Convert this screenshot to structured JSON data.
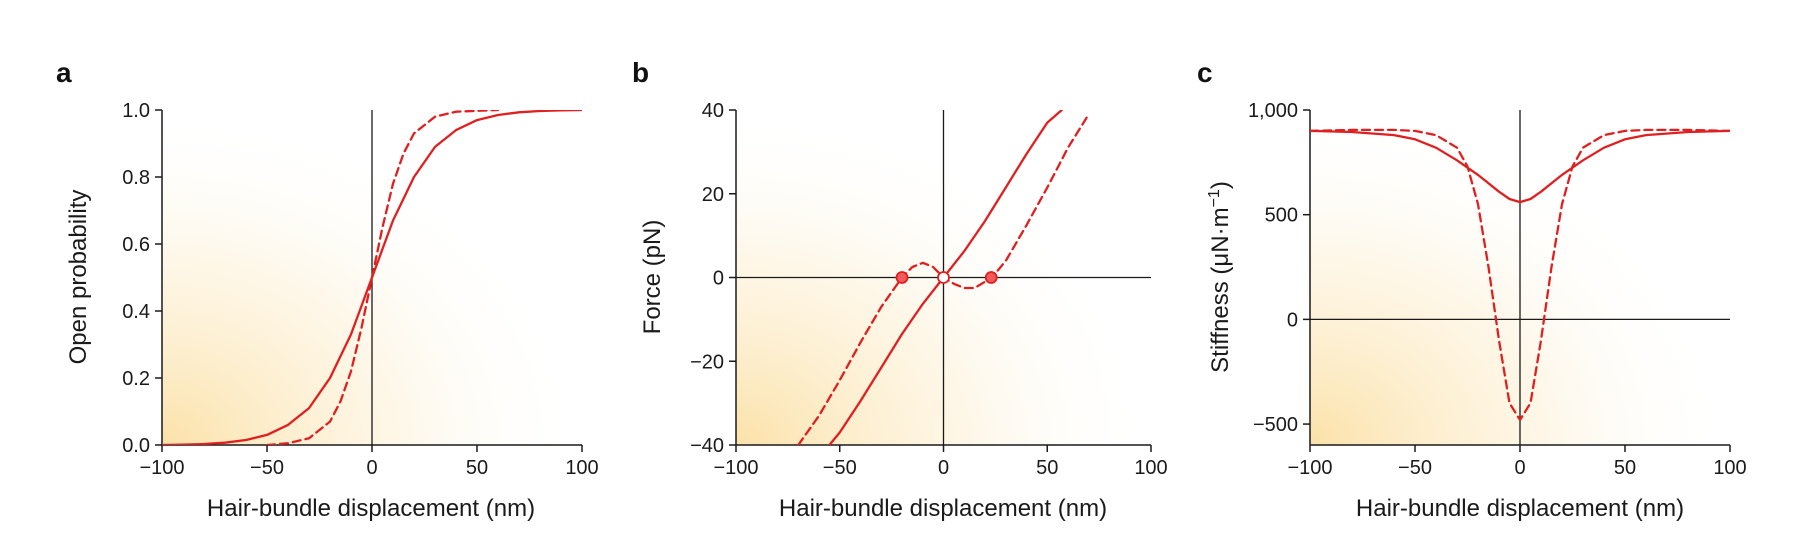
{
  "colors": {
    "curve": "#e02020",
    "marker_fill": "#f25a5a",
    "axis": "#1a1a1a",
    "shade": "#fbe3b0"
  },
  "chart_data": [
    {
      "type": "line",
      "panel_label": "a",
      "xlabel": "Hair-bundle displacement (nm)",
      "ylabel": "Open probability",
      "xlim": [
        -100,
        100
      ],
      "ylim": [
        0,
        1
      ],
      "x_ticks": [
        -100,
        -50,
        0,
        50,
        100
      ],
      "x_tick_labels": [
        "−100",
        "−50",
        "0",
        "50",
        "100"
      ],
      "y_ticks": [
        0,
        0.2,
        0.4,
        0.6,
        0.8,
        1.0
      ],
      "y_tick_labels": [
        "0.0",
        "0.2",
        "0.4",
        "0.6",
        "0.8",
        "1.0"
      ],
      "reference_lines": {
        "x0": true,
        "y0": false
      },
      "series": [
        {
          "style": "solid",
          "x": [
            -100,
            -90,
            -80,
            -70,
            -60,
            -50,
            -40,
            -30,
            -20,
            -10,
            0,
            10,
            20,
            30,
            40,
            50,
            60,
            70,
            80,
            90,
            100
          ],
          "y": [
            0.0,
            0.001,
            0.003,
            0.007,
            0.015,
            0.03,
            0.06,
            0.11,
            0.2,
            0.33,
            0.5,
            0.67,
            0.8,
            0.89,
            0.94,
            0.97,
            0.985,
            0.993,
            0.997,
            0.999,
            1.0
          ]
        },
        {
          "style": "dashed",
          "x": [
            -50,
            -40,
            -30,
            -20,
            -15,
            -10,
            -5,
            0,
            5,
            10,
            15,
            20,
            30,
            40,
            60
          ],
          "y": [
            0.0,
            0.005,
            0.02,
            0.07,
            0.13,
            0.22,
            0.35,
            0.5,
            0.65,
            0.78,
            0.87,
            0.93,
            0.98,
            0.995,
            1.0
          ]
        }
      ],
      "markers": []
    },
    {
      "type": "line",
      "panel_label": "b",
      "xlabel": "Hair-bundle displacement (nm)",
      "ylabel": "Force (pN)",
      "xlim": [
        -100,
        100
      ],
      "ylim": [
        -40,
        40
      ],
      "x_ticks": [
        -100,
        -50,
        0,
        50,
        100
      ],
      "x_tick_labels": [
        "−100",
        "−50",
        "0",
        "50",
        "100"
      ],
      "y_ticks": [
        -40,
        -20,
        0,
        20,
        40
      ],
      "y_tick_labels": [
        "−40",
        "−20",
        "0",
        "20",
        "40"
      ],
      "reference_lines": {
        "x0": true,
        "y0": true
      },
      "series": [
        {
          "style": "solid",
          "x": [
            -55,
            -50,
            -40,
            -30,
            -20,
            -10,
            0,
            10,
            20,
            30,
            40,
            50,
            57
          ],
          "y": [
            -40,
            -37,
            -29.5,
            -21.5,
            -13.5,
            -6.3,
            0,
            6.3,
            13.5,
            21.5,
            29.5,
            37,
            40
          ]
        },
        {
          "style": "dashed",
          "x": [
            -70,
            -60,
            -50,
            -40,
            -30,
            -20,
            -15,
            -10,
            -5,
            0,
            5,
            10,
            15,
            20,
            25,
            30,
            40,
            50,
            60,
            70
          ],
          "y": [
            -40,
            -33,
            -24.5,
            -15.5,
            -7,
            0,
            2.5,
            3.5,
            2.5,
            0,
            -1.5,
            -2.5,
            -2.5,
            -1,
            1,
            4,
            12.5,
            21.5,
            31,
            39
          ]
        }
      ],
      "markers": [
        {
          "x": -20,
          "y": 0,
          "filled": true
        },
        {
          "x": 0,
          "y": 0,
          "filled": false
        },
        {
          "x": 23,
          "y": 0,
          "filled": true
        }
      ]
    },
    {
      "type": "line",
      "panel_label": "c",
      "xlabel": "Hair-bundle displacement (nm)",
      "ylabel": "Stiffness (μN·m−1)",
      "xlim": [
        -100,
        100
      ],
      "ylim": [
        -600,
        1000
      ],
      "x_ticks": [
        -100,
        -50,
        0,
        50,
        100
      ],
      "x_tick_labels": [
        "−100",
        "−50",
        "0",
        "50",
        "100"
      ],
      "y_ticks": [
        -500,
        0,
        500,
        1000
      ],
      "y_tick_labels": [
        "−500",
        "0",
        "500",
        "1,000"
      ],
      "reference_lines": {
        "x0": true,
        "y0": true
      },
      "series": [
        {
          "style": "solid",
          "x": [
            -100,
            -80,
            -60,
            -50,
            -40,
            -30,
            -20,
            -10,
            -5,
            0,
            5,
            10,
            20,
            30,
            40,
            50,
            60,
            80,
            100
          ],
          "y": [
            900,
            895,
            880,
            860,
            820,
            760,
            690,
            610,
            575,
            560,
            575,
            610,
            690,
            760,
            820,
            860,
            880,
            895,
            900
          ]
        },
        {
          "style": "dashed",
          "x": [
            -100,
            -80,
            -60,
            -50,
            -40,
            -30,
            -25,
            -20,
            -15,
            -10,
            -5,
            0,
            5,
            10,
            15,
            20,
            25,
            30,
            40,
            50,
            60,
            80,
            100
          ],
          "y": [
            900,
            905,
            905,
            900,
            880,
            820,
            730,
            550,
            250,
            -100,
            -400,
            -480,
            -400,
            -100,
            250,
            550,
            730,
            820,
            880,
            900,
            905,
            905,
            900
          ]
        }
      ],
      "markers": []
    }
  ]
}
